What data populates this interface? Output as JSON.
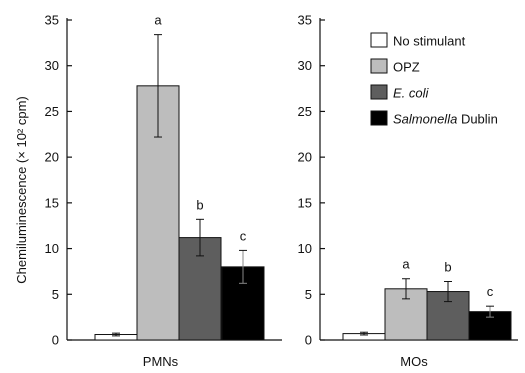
{
  "chart_data": [
    {
      "type": "bar",
      "categories": [
        "No stimulant",
        "OPZ",
        "E. coli",
        "Salmonella Dublin"
      ],
      "values": [
        0.6,
        27.8,
        11.2,
        8.0
      ],
      "errors": [
        0.15,
        5.6,
        2.0,
        1.8
      ],
      "annotations": [
        "",
        "a",
        "b",
        "c"
      ],
      "xlabel": "PMNs",
      "ylabel": "Chemiluminescence (× 10² cpm)",
      "ylim": [
        0,
        35
      ],
      "yticks": [
        "0",
        "5",
        "10",
        "15",
        "20",
        "25",
        "30",
        "35"
      ],
      "colors": [
        "#ffffff",
        "#bdbdbd",
        "#5e5e5e",
        "#000000"
      ]
    },
    {
      "type": "bar",
      "categories": [
        "No stimulant",
        "OPZ",
        "E. coli",
        "Salmonella Dublin"
      ],
      "values": [
        0.7,
        5.6,
        5.3,
        3.1
      ],
      "errors": [
        0.15,
        1.1,
        1.1,
        0.6
      ],
      "annotations": [
        "",
        "a",
        "b",
        "c"
      ],
      "xlabel": "MOs",
      "ylabel": "",
      "ylim": [
        0,
        35
      ],
      "yticks": [
        "0",
        "5",
        "10",
        "15",
        "20",
        "25",
        "30",
        "35"
      ],
      "colors": [
        "#ffffff",
        "#bdbdbd",
        "#5e5e5e",
        "#000000"
      ]
    }
  ],
  "legend": {
    "items": [
      {
        "italic": "",
        "text": "No stimulant",
        "color": "#ffffff"
      },
      {
        "italic": "",
        "text": "OPZ",
        "color": "#bdbdbd"
      },
      {
        "italic": "E. coli",
        "text": "",
        "color": "#5e5e5e"
      },
      {
        "italic": "Salmonella",
        "text": " Dublin",
        "color": "#000000"
      }
    ]
  }
}
